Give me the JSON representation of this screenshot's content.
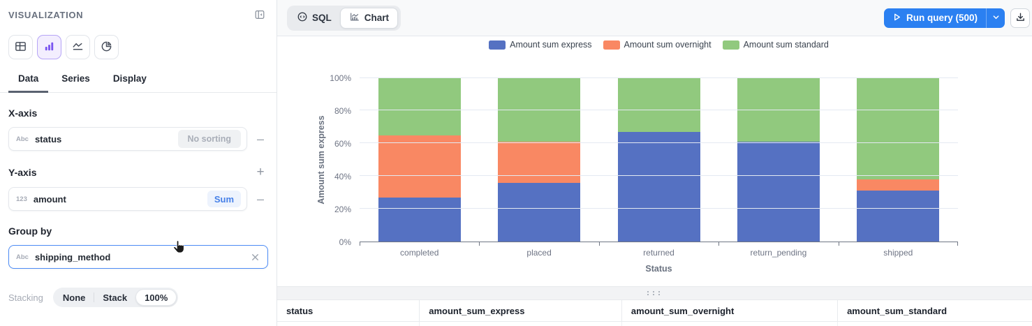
{
  "sidebar": {
    "title": "VISUALIZATION",
    "collapse_icon": "collapse-panel-icon",
    "chart_types": [
      {
        "name": "table",
        "icon": "table-icon",
        "selected": false
      },
      {
        "name": "bar",
        "icon": "bar-chart-icon",
        "selected": true
      },
      {
        "name": "line",
        "icon": "line-chart-icon",
        "selected": false
      },
      {
        "name": "pie",
        "icon": "pie-chart-icon",
        "selected": false
      }
    ],
    "tabs": [
      {
        "label": "Data",
        "active": true
      },
      {
        "label": "Series",
        "active": false
      },
      {
        "label": "Display",
        "active": false
      }
    ],
    "x_axis": {
      "heading": "X-axis",
      "field_type": "Abc",
      "field": "status",
      "sorting_label": "No sorting"
    },
    "y_axis": {
      "heading": "Y-axis",
      "field_type": "123",
      "field": "amount",
      "aggregation": "Sum"
    },
    "group_by": {
      "heading": "Group by",
      "field_type": "Abc",
      "field": "shipping_method"
    },
    "stacking": {
      "label": "Stacking",
      "options": [
        "None",
        "Stack",
        "100%"
      ],
      "selected": "100%"
    }
  },
  "toolbar": {
    "view_toggle": [
      {
        "label": "SQL",
        "icon": "sql-code-icon",
        "active": false
      },
      {
        "label": "Chart",
        "icon": "chart-icon",
        "active": true
      }
    ],
    "run_button": {
      "label": "Run query (500)",
      "icon": "play-icon",
      "caret_icon": "chevron-down-icon"
    },
    "download_icon": "download-icon"
  },
  "chart_data": {
    "type": "bar",
    "stacking": "percent",
    "categories": [
      "completed",
      "placed",
      "returned",
      "return_pending",
      "shipped"
    ],
    "series": [
      {
        "name": "Amount sum express",
        "color": "#5571c2",
        "values": [
          27,
          36,
          67,
          61,
          31
        ]
      },
      {
        "name": "Amount sum overnight",
        "color": "#f98863",
        "values": [
          38,
          25,
          0,
          0,
          7
        ]
      },
      {
        "name": "Amount sum standard",
        "color": "#91c97e",
        "values": [
          35,
          39,
          33,
          39,
          62
        ]
      }
    ],
    "xlabel": "Status",
    "ylabel": "Amount sum express",
    "yticks": [
      "0%",
      "20%",
      "40%",
      "60%",
      "80%",
      "100%"
    ],
    "ylim": [
      0,
      100
    ],
    "grid": true,
    "legend_position": "top"
  },
  "table": {
    "columns": [
      "status",
      "amount_sum_express",
      "amount_sum_overnight",
      "amount_sum_standard"
    ]
  }
}
